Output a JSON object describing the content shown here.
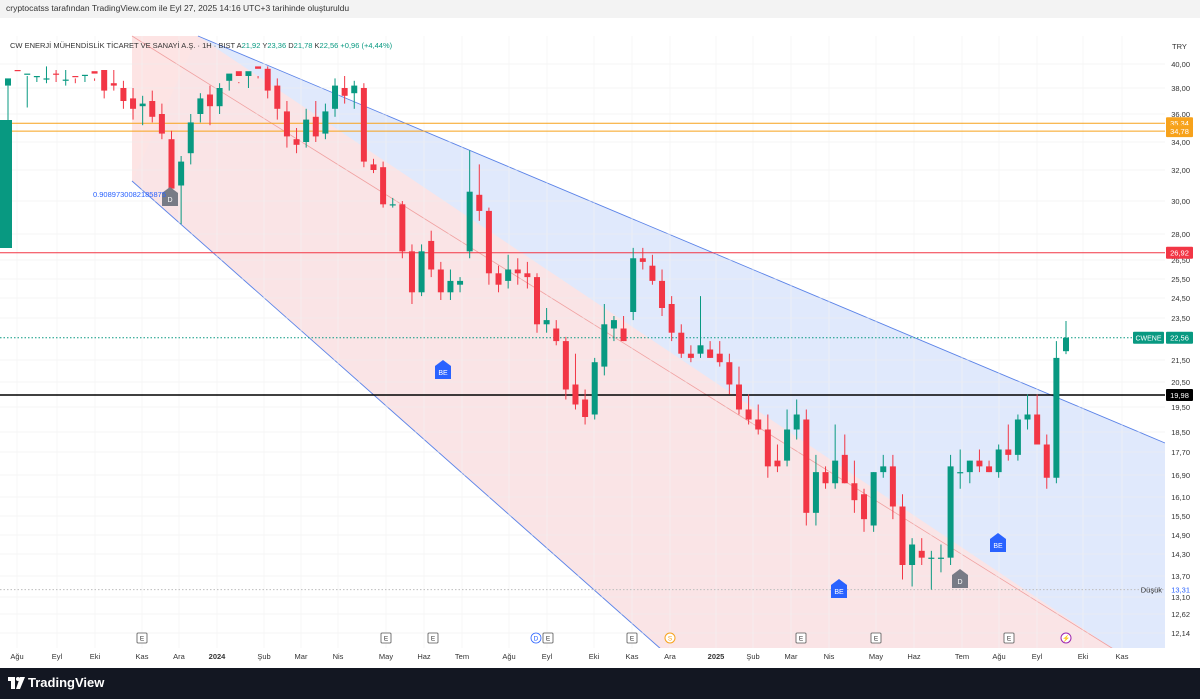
{
  "header": {
    "attribution": "cryptocatss tarafından TradingView.com ile Eyl 27, 2025 14:16 UTC+3 tarihinde oluşturuldu"
  },
  "legend": {
    "symbol_name": "CW ENERJİ MÜHENDİSLİK TİCARET VE SANAYİ A.Ş. · 1H · BIST",
    "o_label": "A",
    "o_value": "21,92",
    "h_label": "Y",
    "h_value": "23,36",
    "l_label": "D",
    "l_value": "21,78",
    "c_label": "K",
    "c_value": "22,56",
    "change": "+0,96 (+4,44%)"
  },
  "currency": "TRY",
  "annotations": {
    "fib_value": "0.9089730082185875",
    "low_label": "Düşük",
    "low_value": "13,31"
  },
  "footer": {
    "brand": "TradingView"
  },
  "colors": {
    "up": "#089981",
    "down": "#f23645",
    "channel_blue_fill": "#dbe5fc",
    "channel_red_fill": "#fde3e3",
    "channel_line": "#5b83e8",
    "orange": "#f7a21b",
    "red_line": "#f23645",
    "black_line": "#000000"
  },
  "chart_data": {
    "type": "candlestick",
    "currency": "TRY",
    "y_ticks": [
      "40,00",
      "38,00",
      "36,00",
      "34,00",
      "32,00",
      "30,00",
      "28,00",
      "26,50",
      "25,50",
      "24,50",
      "23,50",
      "21,50",
      "20,50",
      "19,50",
      "18,50",
      "17,70",
      "16,90",
      "16,10",
      "15,50",
      "14,90",
      "14,30",
      "13,70",
      "13,10",
      "12,62",
      "12,14"
    ],
    "x_ticks": [
      "Ağu",
      "Eyl",
      "Eki",
      "Kas",
      "Ara",
      "2024",
      "Şub",
      "Mar",
      "Nis",
      "May",
      "Haz",
      "Tem",
      "Ağu",
      "Eyl",
      "Eki",
      "Kas",
      "Ara",
      "2025",
      "Şub",
      "Mar",
      "Nis",
      "May",
      "Haz",
      "Tem",
      "Ağu",
      "Eyl",
      "Eki",
      "Kas"
    ],
    "x_ticks_bold": [
      "2024",
      "2025"
    ],
    "price_labels": [
      {
        "value": 35.34,
        "text": "35,34",
        "color": "#f7a21b"
      },
      {
        "value": 34.78,
        "text": "34,78",
        "color": "#f7a21b"
      },
      {
        "value": 26.92,
        "text": "26,92",
        "color": "#f23645"
      },
      {
        "value": 19.98,
        "text": "19,98",
        "color": "#000000"
      },
      {
        "value": 22.56,
        "text": "22,56",
        "color": "#089981",
        "tag": "CWENE"
      },
      {
        "value": 13.31,
        "text": "13,31",
        "color": "#ffffff"
      }
    ],
    "horizontal_lines": [
      {
        "value": 35.34,
        "color": "#f7a21b",
        "style": "solid"
      },
      {
        "value": 34.78,
        "color": "#f7a21b",
        "style": "solid"
      },
      {
        "value": 26.92,
        "color": "#f23645",
        "style": "solid"
      },
      {
        "value": 19.98,
        "color": "#000000",
        "style": "solid"
      },
      {
        "value": 22.56,
        "color": "#089981",
        "style": "dotted"
      },
      {
        "value": 13.31,
        "color": "#bdbdbd",
        "style": "dotted"
      }
    ],
    "markers": [
      {
        "label": "D",
        "kind": "gray"
      },
      {
        "label": "BE",
        "kind": "blue"
      },
      {
        "label": "BE",
        "kind": "blue"
      },
      {
        "label": "BE",
        "kind": "blue"
      },
      {
        "label": "D",
        "kind": "gray"
      }
    ],
    "bottom_events": [
      "E",
      "E",
      "E",
      "D",
      "E",
      "E",
      "S",
      "E",
      "E",
      "E",
      "⚡"
    ],
    "candles": [
      {
        "o": 38.2,
        "h": 41.8,
        "l": 33.8,
        "c": 41.2
      },
      {
        "o": 40.5,
        "h": 41.2,
        "l": 38.8,
        "c": 39.5
      },
      {
        "o": 39.5,
        "h": 41.0,
        "l": 36.5,
        "c": 40.8
      },
      {
        "o": 40.2,
        "h": 41.5,
        "l": 39.0,
        "c": 41.0
      },
      {
        "o": 40.5,
        "h": 41.6,
        "l": 39.8,
        "c": 41.2
      },
      {
        "o": 40.8,
        "h": 41.5,
        "l": 39.5,
        "c": 40.2
      },
      {
        "o": 40.5,
        "h": 41.8,
        "l": 39.5,
        "c": 41.3
      },
      {
        "o": 41.0,
        "h": 41.6,
        "l": 38.8,
        "c": 39.8
      },
      {
        "o": 40.0,
        "h": 41.5,
        "l": 39.0,
        "c": 40.9
      },
      {
        "o": 40.6,
        "h": 41.2,
        "l": 38.6,
        "c": 39.2
      },
      {
        "o": 39.5,
        "h": 41.0,
        "l": 37.2,
        "c": 37.8
      },
      {
        "o": 38.4,
        "h": 40.5,
        "l": 37.8,
        "c": 38.2
      },
      {
        "o": 38.0,
        "h": 38.6,
        "l": 36.4,
        "c": 37.0
      },
      {
        "o": 37.2,
        "h": 38.0,
        "l": 35.6,
        "c": 36.4
      },
      {
        "o": 36.6,
        "h": 37.4,
        "l": 35.2,
        "c": 36.8
      },
      {
        "o": 37.0,
        "h": 37.8,
        "l": 35.4,
        "c": 35.8
      },
      {
        "o": 36.0,
        "h": 36.8,
        "l": 34.2,
        "c": 34.6
      },
      {
        "o": 34.2,
        "h": 34.8,
        "l": 30.0,
        "c": 30.8
      },
      {
        "o": 31.0,
        "h": 33.0,
        "l": 28.6,
        "c": 32.6
      },
      {
        "o": 33.2,
        "h": 36.0,
        "l": 32.4,
        "c": 35.4
      },
      {
        "o": 36.0,
        "h": 37.6,
        "l": 35.4,
        "c": 37.2
      },
      {
        "o": 37.5,
        "h": 38.2,
        "l": 35.2,
        "c": 36.6
      },
      {
        "o": 36.6,
        "h": 38.4,
        "l": 36.0,
        "c": 38.0
      },
      {
        "o": 38.6,
        "h": 41.2,
        "l": 37.8,
        "c": 40.8
      },
      {
        "o": 40.6,
        "h": 41.5,
        "l": 38.4,
        "c": 39.0
      },
      {
        "o": 39.0,
        "h": 41.0,
        "l": 38.0,
        "c": 40.6
      },
      {
        "o": 40.2,
        "h": 41.2,
        "l": 39.0,
        "c": 39.6
      },
      {
        "o": 39.6,
        "h": 40.2,
        "l": 37.2,
        "c": 37.8
      },
      {
        "o": 38.2,
        "h": 38.8,
        "l": 35.6,
        "c": 36.4
      },
      {
        "o": 36.2,
        "h": 37.0,
        "l": 33.6,
        "c": 34.4
      },
      {
        "o": 34.2,
        "h": 35.0,
        "l": 33.2,
        "c": 33.8
      },
      {
        "o": 34.0,
        "h": 36.4,
        "l": 33.6,
        "c": 35.6
      },
      {
        "o": 35.8,
        "h": 37.0,
        "l": 34.0,
        "c": 34.4
      },
      {
        "o": 34.6,
        "h": 36.8,
        "l": 34.2,
        "c": 36.2
      },
      {
        "o": 36.4,
        "h": 38.8,
        "l": 35.8,
        "c": 38.2
      },
      {
        "o": 38.0,
        "h": 39.0,
        "l": 36.8,
        "c": 37.4
      },
      {
        "o": 37.6,
        "h": 38.6,
        "l": 36.4,
        "c": 38.2
      },
      {
        "o": 38.0,
        "h": 38.4,
        "l": 32.2,
        "c": 32.6
      },
      {
        "o": 32.4,
        "h": 32.8,
        "l": 31.8,
        "c": 32.0
      },
      {
        "o": 32.2,
        "h": 32.6,
        "l": 29.6,
        "c": 29.8
      },
      {
        "o": 29.8,
        "h": 30.2,
        "l": 29.6,
        "c": 29.8
      },
      {
        "o": 29.8,
        "h": 30.0,
        "l": 26.6,
        "c": 27.0
      },
      {
        "o": 27.0,
        "h": 27.4,
        "l": 24.2,
        "c": 24.8
      },
      {
        "o": 24.8,
        "h": 27.4,
        "l": 24.6,
        "c": 27.0
      },
      {
        "o": 27.6,
        "h": 28.2,
        "l": 25.6,
        "c": 26.0
      },
      {
        "o": 26.0,
        "h": 26.4,
        "l": 24.4,
        "c": 24.8
      },
      {
        "o": 24.8,
        "h": 26.0,
        "l": 24.4,
        "c": 25.4
      },
      {
        "o": 25.2,
        "h": 25.6,
        "l": 24.8,
        "c": 25.4
      },
      {
        "o": 27.0,
        "h": 33.4,
        "l": 26.6,
        "c": 30.6
      },
      {
        "o": 30.4,
        "h": 32.4,
        "l": 28.8,
        "c": 29.4
      },
      {
        "o": 29.4,
        "h": 29.6,
        "l": 25.2,
        "c": 25.8
      },
      {
        "o": 25.8,
        "h": 26.2,
        "l": 24.8,
        "c": 25.2
      },
      {
        "o": 25.4,
        "h": 26.8,
        "l": 25.0,
        "c": 26.0
      },
      {
        "o": 26.0,
        "h": 26.6,
        "l": 25.2,
        "c": 25.8
      },
      {
        "o": 25.8,
        "h": 26.4,
        "l": 25.0,
        "c": 25.6
      },
      {
        "o": 25.6,
        "h": 25.8,
        "l": 22.8,
        "c": 23.2
      },
      {
        "o": 23.2,
        "h": 24.0,
        "l": 22.8,
        "c": 23.4
      },
      {
        "o": 23.0,
        "h": 23.4,
        "l": 22.2,
        "c": 22.4
      },
      {
        "o": 22.4,
        "h": 22.6,
        "l": 19.8,
        "c": 20.2
      },
      {
        "o": 20.4,
        "h": 21.8,
        "l": 19.4,
        "c": 19.6
      },
      {
        "o": 19.8,
        "h": 20.2,
        "l": 18.8,
        "c": 19.1
      },
      {
        "o": 19.2,
        "h": 21.6,
        "l": 19.0,
        "c": 21.4
      },
      {
        "o": 21.2,
        "h": 24.2,
        "l": 20.8,
        "c": 23.2
      },
      {
        "o": 23.0,
        "h": 23.6,
        "l": 22.4,
        "c": 23.4
      },
      {
        "o": 23.0,
        "h": 23.6,
        "l": 22.4,
        "c": 22.4
      },
      {
        "o": 23.8,
        "h": 27.2,
        "l": 23.4,
        "c": 26.6
      },
      {
        "o": 26.6,
        "h": 27.2,
        "l": 26.0,
        "c": 26.4
      },
      {
        "o": 26.2,
        "h": 26.8,
        "l": 25.2,
        "c": 25.4
      },
      {
        "o": 25.4,
        "h": 26.0,
        "l": 23.6,
        "c": 24.0
      },
      {
        "o": 24.2,
        "h": 24.6,
        "l": 22.4,
        "c": 22.8
      },
      {
        "o": 22.8,
        "h": 23.2,
        "l": 21.6,
        "c": 21.8
      },
      {
        "o": 21.8,
        "h": 22.2,
        "l": 21.4,
        "c": 21.6
      },
      {
        "o": 21.8,
        "h": 24.6,
        "l": 21.6,
        "c": 22.2
      },
      {
        "o": 22.0,
        "h": 22.4,
        "l": 21.6,
        "c": 21.6
      },
      {
        "o": 21.8,
        "h": 22.4,
        "l": 21.2,
        "c": 21.4
      },
      {
        "o": 21.4,
        "h": 21.8,
        "l": 20.0,
        "c": 20.4
      },
      {
        "o": 20.4,
        "h": 21.2,
        "l": 19.2,
        "c": 19.4
      },
      {
        "o": 19.4,
        "h": 20.0,
        "l": 18.8,
        "c": 19.0
      },
      {
        "o": 19.0,
        "h": 19.6,
        "l": 18.4,
        "c": 18.6
      },
      {
        "o": 18.6,
        "h": 19.2,
        "l": 16.8,
        "c": 17.2
      },
      {
        "o": 17.4,
        "h": 18.0,
        "l": 17.0,
        "c": 17.2
      },
      {
        "o": 17.4,
        "h": 19.4,
        "l": 17.2,
        "c": 18.6
      },
      {
        "o": 18.6,
        "h": 19.8,
        "l": 18.2,
        "c": 19.2
      },
      {
        "o": 19.0,
        "h": 19.4,
        "l": 15.2,
        "c": 15.6
      },
      {
        "o": 15.6,
        "h": 17.6,
        "l": 15.2,
        "c": 17.0
      },
      {
        "o": 17.0,
        "h": 17.2,
        "l": 16.4,
        "c": 16.6
      },
      {
        "o": 16.6,
        "h": 18.8,
        "l": 16.4,
        "c": 17.4
      },
      {
        "o": 17.6,
        "h": 18.4,
        "l": 16.6,
        "c": 16.6
      },
      {
        "o": 16.6,
        "h": 17.4,
        "l": 15.6,
        "c": 16.0
      },
      {
        "o": 16.2,
        "h": 16.4,
        "l": 15.0,
        "c": 15.4
      },
      {
        "o": 15.2,
        "h": 17.0,
        "l": 15.0,
        "c": 17.0
      },
      {
        "o": 17.0,
        "h": 17.6,
        "l": 16.8,
        "c": 17.2
      },
      {
        "o": 17.2,
        "h": 17.6,
        "l": 15.4,
        "c": 15.8
      },
      {
        "o": 15.8,
        "h": 16.2,
        "l": 13.6,
        "c": 14.0
      },
      {
        "o": 14.0,
        "h": 14.8,
        "l": 13.4,
        "c": 14.6
      },
      {
        "o": 14.4,
        "h": 14.8,
        "l": 14.0,
        "c": 14.2
      },
      {
        "o": 14.2,
        "h": 14.4,
        "l": 13.31,
        "c": 14.2
      },
      {
        "o": 14.2,
        "h": 14.6,
        "l": 13.8,
        "c": 14.2
      },
      {
        "o": 14.2,
        "h": 17.6,
        "l": 14.0,
        "c": 17.2
      },
      {
        "o": 17.0,
        "h": 17.8,
        "l": 16.4,
        "c": 17.0
      },
      {
        "o": 17.0,
        "h": 17.4,
        "l": 16.6,
        "c": 17.4
      },
      {
        "o": 17.4,
        "h": 17.8,
        "l": 17.0,
        "c": 17.2
      },
      {
        "o": 17.2,
        "h": 17.4,
        "l": 17.0,
        "c": 17.0
      },
      {
        "o": 17.0,
        "h": 18.0,
        "l": 16.8,
        "c": 17.8
      },
      {
        "o": 17.8,
        "h": 18.8,
        "l": 17.4,
        "c": 17.6
      },
      {
        "o": 17.6,
        "h": 19.2,
        "l": 17.4,
        "c": 19.0
      },
      {
        "o": 19.0,
        "h": 20.0,
        "l": 18.6,
        "c": 19.2
      },
      {
        "o": 19.2,
        "h": 20.0,
        "l": 18.0,
        "c": 18.0
      },
      {
        "o": 18.0,
        "h": 18.4,
        "l": 16.4,
        "c": 16.8
      },
      {
        "o": 16.8,
        "h": 22.4,
        "l": 16.6,
        "c": 21.6
      },
      {
        "o": 21.92,
        "h": 23.36,
        "l": 21.78,
        "c": 22.56
      }
    ]
  }
}
